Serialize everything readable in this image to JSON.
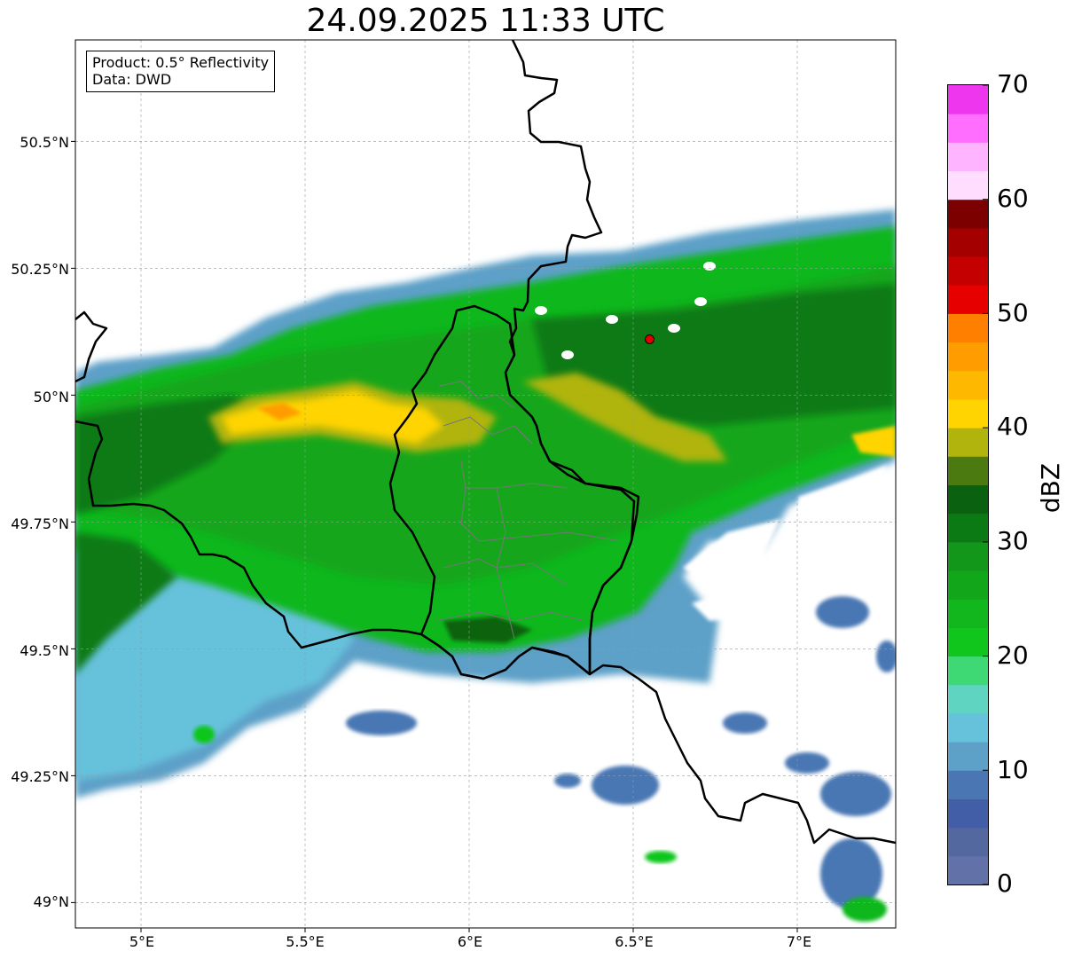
{
  "title": "24.09.2025 11:33 UTC",
  "info_box": {
    "product": "Product: 0.5° Reflectivity",
    "data": "Data: DWD"
  },
  "axes": {
    "lat_ticks": [
      "50.5°N",
      "50.25°N",
      "50°N",
      "49.75°N",
      "49.5°N",
      "49.25°N",
      "49°N"
    ],
    "lon_ticks": [
      "5°E",
      "5.5°E",
      "6°E",
      "6.5°E",
      "7°E"
    ],
    "lat_values": [
      50.5,
      50.25,
      50.0,
      49.75,
      49.5,
      49.25,
      49.0
    ],
    "lon_values": [
      5.0,
      5.5,
      6.0,
      6.5,
      7.0
    ],
    "extent": {
      "lon_min": 4.8,
      "lon_max": 7.3,
      "lat_min": 48.95,
      "lat_max": 50.7
    },
    "grid": true
  },
  "radar_site": {
    "lon": 6.55,
    "lat": 50.11,
    "color": "#e00000"
  },
  "colorbar": {
    "label": "dBZ",
    "min": 0,
    "max": 70,
    "step": 2.5,
    "ticks": [
      "0",
      "10",
      "20",
      "30",
      "40",
      "50",
      "60",
      "70"
    ],
    "colors": [
      "#6272a8",
      "#52689f",
      "#415ea6",
      "#4a77b3",
      "#5da0c8",
      "#66c1db",
      "#5ed4c1",
      "#3ed975",
      "#10c61d",
      "#11b71c",
      "#12a61b",
      "#13971a",
      "#0c7a14",
      "#0a6210",
      "#4a7a10",
      "#b0b40c",
      "#ffd400",
      "#ffb800",
      "#ff9d00",
      "#ff7f00",
      "#e60000",
      "#c50000",
      "#a40000",
      "#7c0000",
      "#ffddff",
      "#ffb4ff",
      "#ff6eff",
      "#ee36ee"
    ]
  }
}
